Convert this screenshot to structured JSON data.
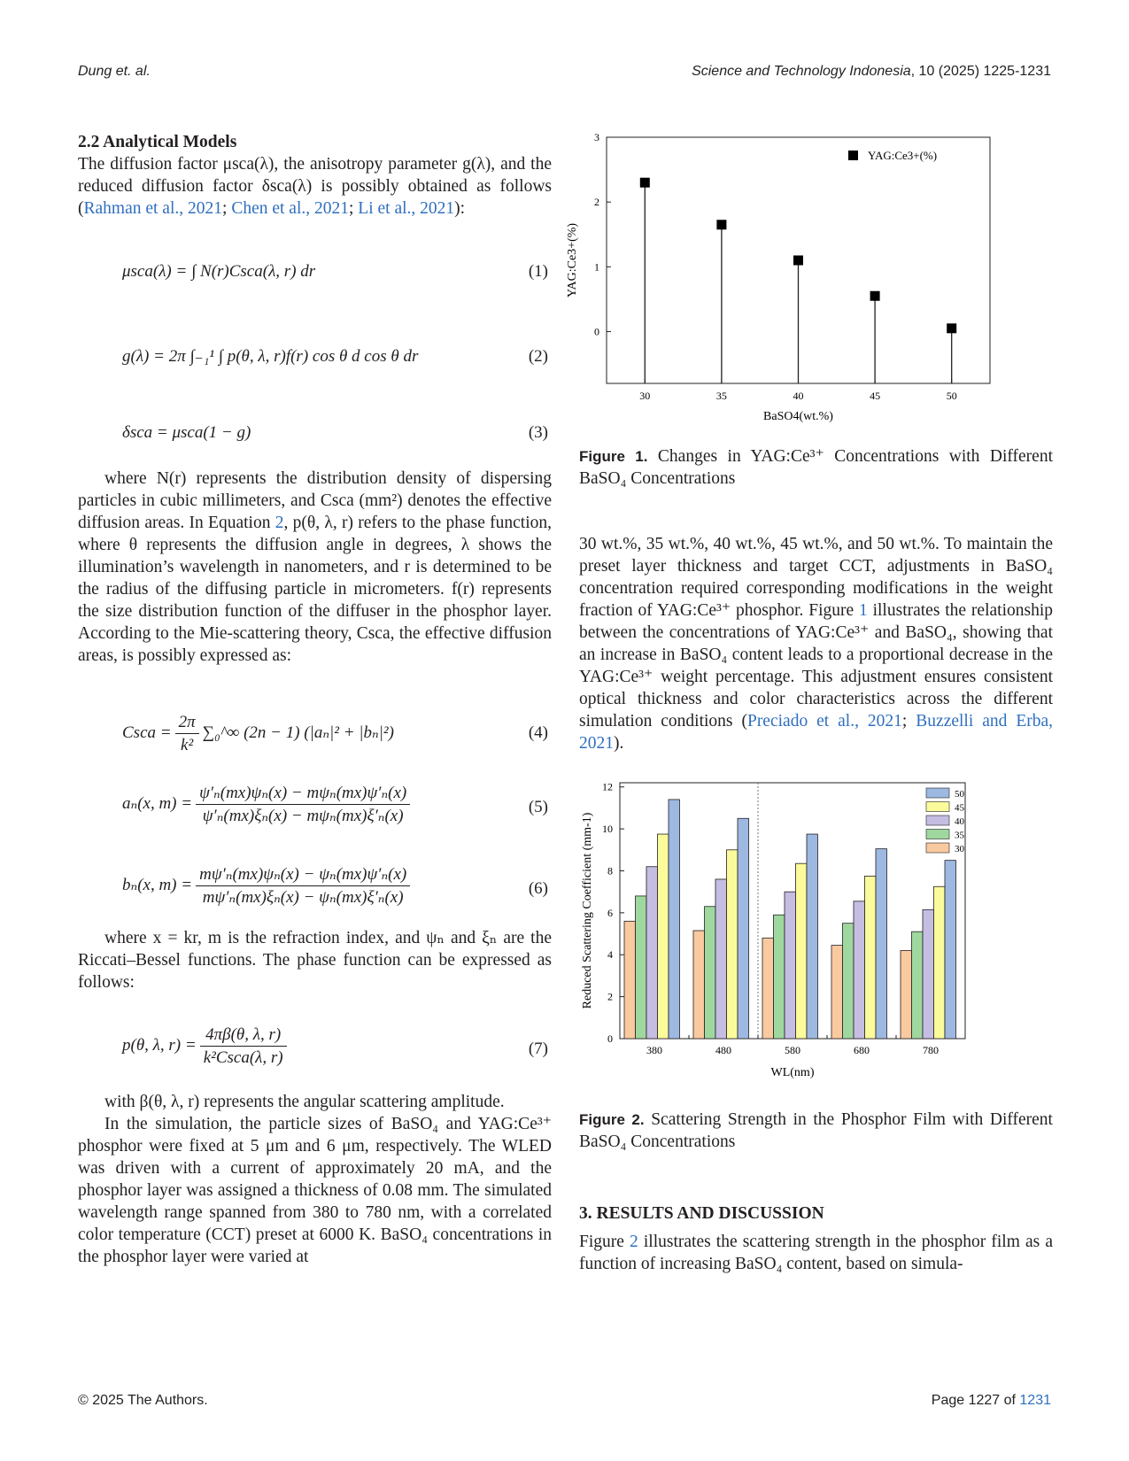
{
  "header": {
    "left": "Dung et. al.",
    "right_journal": "Science and Technology Indonesia",
    "right_rest": ", 10 (2025) 1225-1231"
  },
  "section22": {
    "title": "2.2  Analytical Models",
    "intro": "The diffusion factor μsca(λ), the anisotropy parameter g(λ), and the reduced diffusion factor δsca(λ) is possibly obtained as follows (",
    "ref1": "Rahman et al., 2021",
    "ref2": "Chen et al., 2021",
    "ref3": "Li et al., 2021",
    "intro_end": "):"
  },
  "equations": {
    "eq1": "μsca(λ) = ∫ N(r)Csca(λ, r) dr",
    "eq1_num": "(1)",
    "eq2": "g(λ) = 2π ∫₋₁¹ ∫ p(θ, λ, r)f(r) cos θ d cos θ dr",
    "eq2_num": "(2)",
    "eq3": "δsca = μsca(1 − g)",
    "eq3_num": "(3)",
    "eq4_lhs": "Csca =",
    "eq4_frac_n": "2π",
    "eq4_frac_d": "k²",
    "eq4_rhs": "∑₀^∞ (2n − 1) (|aₙ|² + |bₙ|²)",
    "eq4_num": "(4)",
    "eq5_lhs": "aₙ(x, m) =",
    "eq5_n": "ψ′ₙ(mx)ψₙ(x) − mψₙ(mx)ψ′ₙ(x)",
    "eq5_d": "ψ′ₙ(mx)ξₙ(x) − mψₙ(mx)ξ′ₙ(x)",
    "eq5_num": "(5)",
    "eq6_lhs": "bₙ(x, m) =",
    "eq6_n": "mψ′ₙ(mx)ψₙ(x) − ψₙ(mx)ψ′ₙ(x)",
    "eq6_d": "mψ′ₙ(mx)ξₙ(x) − ψₙ(mx)ξ′ₙ(x)",
    "eq6_num": "(6)",
    "eq7_lhs": "p(θ, λ, r) =",
    "eq7_n": "4πβ(θ, λ, r)",
    "eq7_d": "k²Csca(λ, r)",
    "eq7_num": "(7)"
  },
  "left_text": {
    "para1a": "where N(r) represents the distribution density of dispersing particles in cubic millimeters, and Csca (mm²) denotes the effective diffusion areas. In Equation ",
    "para1_ref": "2",
    "para1b": ", p(θ, λ, r) refers to the phase function, where θ represents the diffusion angle in degrees, λ shows the illumination’s wavelength in nanometers, and r is determined to be the radius of the diffusing particle in micrometers. f(r) represents the size distribution function of the diffuser in the phosphor layer. According to the Mie-scattering theory, Csca, the effective diffusion areas, is possibly expressed as:",
    "para2": "where x = kr, m is the refraction index, and ψₙ and ξₙ are the Riccati–Bessel functions. The phase function can be expressed as follows:",
    "para3": "with β(θ, λ, r) represents the angular scattering amplitude.",
    "para4": "In the simulation, the particle sizes of BaSO₄ and YAG:Ce³⁺ phosphor were fixed at 5 μm and 6 μm, respectively. The WLED was driven with a current of approximately 20 mA, and the phosphor layer was assigned a thickness of 0.08 mm. The simulated wavelength range spanned from 380 to 780 nm, with a correlated color temperature (CCT) preset at 6000 K. BaSO₄ concentrations in the phosphor layer were varied at"
  },
  "figure1": {
    "label": "Figure 1.",
    "caption": " Changes in YAG:Ce³⁺ Concentrations with Different BaSO₄ Concentrations"
  },
  "right_para1": {
    "text_a": "30 wt.%, 35 wt.%, 40 wt.%, 45 wt.%, and 50 wt.%. To maintain the preset layer thickness and target CCT, adjustments in BaSO₄ concentration required corresponding modifications in the weight fraction of YAG:Ce³⁺ phosphor. Figure ",
    "ref_fig": "1",
    "text_b": " illustrates the relationship between the concentrations of YAG:Ce³⁺ and BaSO₄, showing that an increase in BaSO₄ content leads to a proportional decrease in the YAG:Ce³⁺ weight percentage. This adjustment ensures consistent optical thickness and color characteristics across the different simulation conditions (",
    "ref1": "Preciado et al., 2021",
    "ref2": "Buzzelli and Erba, 2021",
    "text_c": ")."
  },
  "figure2": {
    "label": "Figure 2.",
    "caption": " Scattering Strength in the Phosphor Film with Different BaSO₄ Concentrations"
  },
  "section3": {
    "title": "3. RESULTS AND DISCUSSION",
    "text_a": "Figure ",
    "ref_fig": "2",
    "text_b": " illustrates the scattering strength in the phosphor film as a function of increasing BaSO₄ content, based on simula-"
  },
  "footer": {
    "left": "© 2025 The Authors.",
    "right_prefix": "Page 1227 of ",
    "right_total": "1231"
  },
  "chart_data": [
    {
      "type": "scatter",
      "title": "",
      "xlabel": "BaSO4(wt.%)",
      "ylabel": "YAG:Ce3+(%)",
      "x": [
        30,
        35,
        40,
        45,
        50
      ],
      "y": [
        2.3,
        1.65,
        1.1,
        0.55,
        0.05
      ],
      "xticks": [
        "30",
        "35",
        "40",
        "45",
        "50"
      ],
      "yticks": [
        "0",
        "1",
        "2",
        "3"
      ],
      "ylim": [
        -0.8,
        3
      ],
      "legend": "YAG:Ce3+(%)",
      "legend_position": "top-right",
      "stems": true
    },
    {
      "type": "bar",
      "title": "",
      "xlabel": "WL(nm)",
      "ylabel": "Reduced Scattering Coefficient (mm-1)",
      "categories": [
        "380",
        "480",
        "580",
        "680",
        "780"
      ],
      "yticks": [
        "0",
        "2",
        "4",
        "6",
        "8",
        "10",
        "12"
      ],
      "ylim": [
        0,
        12.2
      ],
      "legend_position": "top-right",
      "series": [
        {
          "name": "30",
          "color": "#f9c9a0",
          "values": [
            5.6,
            5.15,
            4.8,
            4.45,
            4.2
          ]
        },
        {
          "name": "35",
          "color": "#9fd89f",
          "values": [
            6.8,
            6.3,
            5.9,
            5.5,
            5.1
          ]
        },
        {
          "name": "40",
          "color": "#c5bde2",
          "values": [
            8.2,
            7.6,
            7.0,
            6.55,
            6.15
          ]
        },
        {
          "name": "45",
          "color": "#fbfb9c",
          "values": [
            9.75,
            9.0,
            8.35,
            7.75,
            7.25
          ]
        },
        {
          "name": "50",
          "color": "#9db9e2",
          "values": [
            11.4,
            10.5,
            9.75,
            9.05,
            8.5
          ]
        }
      ]
    }
  ]
}
